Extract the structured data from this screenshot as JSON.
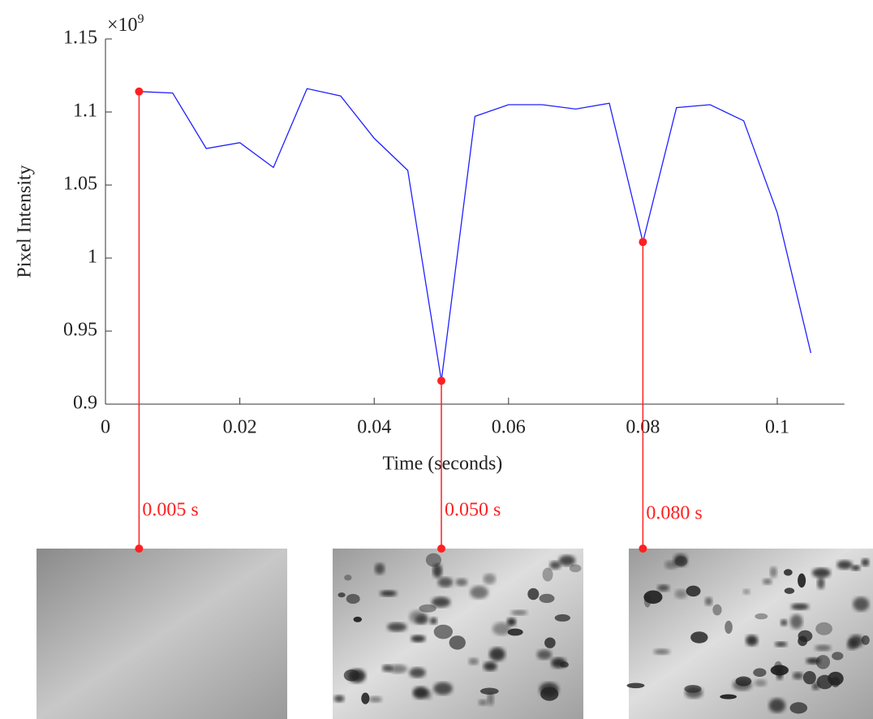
{
  "chart_data": {
    "type": "line",
    "x_label": "Time (seconds)",
    "y_label": "Pixel Intensity",
    "y_multiplier_base": "×10",
    "y_multiplier_exponent": "9",
    "x": [
      0.005,
      0.01,
      0.015,
      0.02,
      0.025,
      0.03,
      0.035,
      0.04,
      0.045,
      0.05,
      0.055,
      0.06,
      0.065,
      0.07,
      0.075,
      0.08,
      0.085,
      0.09,
      0.095,
      0.1,
      0.105
    ],
    "series": [
      {
        "name": "Pixel Intensity",
        "color": "#2020ff",
        "values": [
          1.114,
          1.113,
          1.075,
          1.079,
          1.062,
          1.116,
          1.111,
          1.082,
          1.06,
          0.916,
          1.097,
          1.105,
          1.105,
          1.102,
          1.106,
          1.011,
          1.103,
          1.105,
          1.094,
          1.031,
          0.935
        ]
      }
    ],
    "xlim": [
      0,
      0.11
    ],
    "ylim": [
      0.9,
      1.15
    ],
    "xticks": [
      0,
      0.02,
      0.04,
      0.06,
      0.08,
      0.1
    ],
    "yticks": [
      0.9,
      0.95,
      1,
      1.05,
      1.1,
      1.15
    ],
    "highlight_color": "#ff2020",
    "highlights": [
      {
        "x": 0.005,
        "label": "0.005 s"
      },
      {
        "x": 0.05,
        "label": "0.050 s"
      },
      {
        "x": 0.08,
        "label": "0.080 s"
      }
    ]
  }
}
